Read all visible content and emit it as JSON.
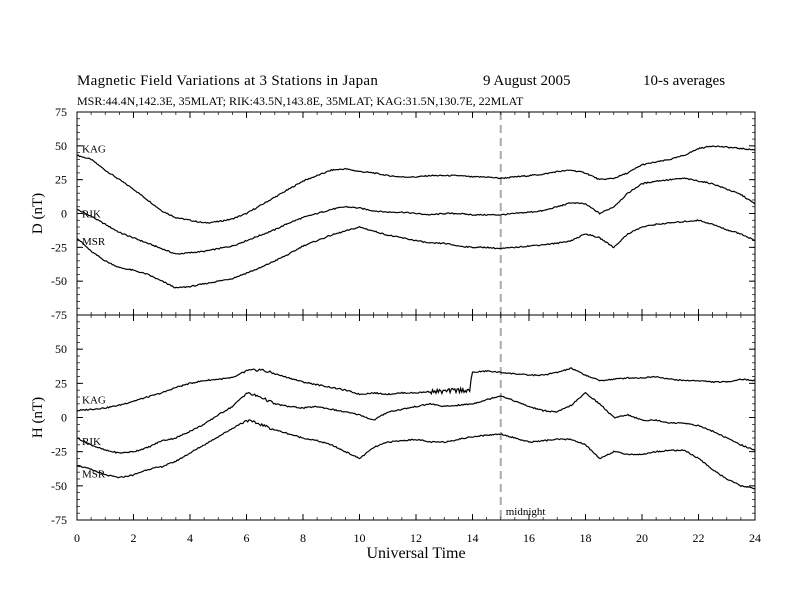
{
  "header": {
    "title": "Magnetic Field Variations at 3 Stations in Japan",
    "date": "9   August  2005",
    "averaging": "10-s averages",
    "stations": "MSR:44.4N,142.3E, 35MLAT;  RIK:43.5N,143.8E, 35MLAT;  KAG:31.5N,130.7E, 22MLAT"
  },
  "chart_data": [
    {
      "type": "line",
      "panel": "D",
      "ylabel": "D (nT)",
      "xlabel": "",
      "xlim": [
        0,
        24
      ],
      "ylim": [
        -75,
        75
      ],
      "yticks": [
        -75,
        -50,
        -25,
        0,
        25,
        50,
        75
      ],
      "xticks": [
        0,
        2,
        4,
        6,
        8,
        10,
        12,
        14,
        16,
        18,
        20,
        22,
        24
      ],
      "marker_line": {
        "x": 15,
        "style": "dashed",
        "color": "#aaaaaa"
      },
      "series": [
        {
          "name": "KAG",
          "x": [
            0,
            0.5,
            1,
            1.5,
            2,
            2.5,
            3,
            3.5,
            4,
            4.5,
            5,
            5.5,
            6,
            6.5,
            7,
            7.5,
            8,
            8.5,
            9,
            9.5,
            10,
            10.5,
            11,
            11.5,
            12,
            12.5,
            13,
            13.5,
            14,
            14.5,
            15,
            15.5,
            16,
            16.5,
            17,
            17.5,
            18,
            18.5,
            19,
            19.5,
            20,
            20.5,
            21,
            21.5,
            22,
            22.5,
            23,
            23.5,
            24
          ],
          "y": [
            43,
            40,
            32,
            25,
            18,
            10,
            2,
            -3,
            -5,
            -7,
            -6,
            -4,
            0,
            6,
            12,
            18,
            24,
            28,
            32,
            33,
            31,
            30,
            28,
            27,
            27,
            28,
            28,
            28,
            27,
            27,
            26,
            27,
            28,
            29,
            31,
            32,
            30,
            25,
            26,
            30,
            36,
            38,
            40,
            43,
            48,
            50,
            49,
            48,
            47
          ]
        },
        {
          "name": "RIK",
          "x": [
            0,
            0.5,
            1,
            1.5,
            2,
            2.5,
            3,
            3.5,
            4,
            4.5,
            5,
            5.5,
            6,
            6.5,
            7,
            7.5,
            8,
            8.5,
            9,
            9.5,
            10,
            10.5,
            11,
            11.5,
            12,
            12.5,
            13,
            13.5,
            14,
            14.5,
            15,
            15.5,
            16,
            16.5,
            17,
            17.5,
            18,
            18.5,
            19,
            19.5,
            20,
            20.5,
            21,
            21.5,
            22,
            22.5,
            23,
            23.5,
            24
          ],
          "y": [
            3,
            -2,
            -8,
            -14,
            -18,
            -22,
            -26,
            -30,
            -29,
            -28,
            -26,
            -24,
            -20,
            -16,
            -12,
            -7,
            -3,
            0,
            3,
            5,
            4,
            2,
            1,
            1,
            0,
            -1,
            0,
            0,
            -1,
            -1,
            -1,
            0,
            1,
            2,
            5,
            8,
            7,
            0,
            5,
            15,
            22,
            24,
            25,
            26,
            24,
            22,
            18,
            14,
            7
          ]
        },
        {
          "name": "MSR",
          "x": [
            0,
            0.5,
            1,
            1.5,
            2,
            2.5,
            3,
            3.5,
            4,
            4.5,
            5,
            5.5,
            6,
            6.5,
            7,
            7.5,
            8,
            8.5,
            9,
            9.5,
            10,
            10.5,
            11,
            11.5,
            12,
            12.5,
            13,
            13.5,
            14,
            14.5,
            15,
            15.5,
            16,
            16.5,
            17,
            17.5,
            18,
            18.5,
            19,
            19.5,
            20,
            20.5,
            21,
            21.5,
            22,
            22.5,
            23,
            23.5,
            24
          ],
          "y": [
            -18,
            -28,
            -35,
            -40,
            -42,
            -45,
            -50,
            -55,
            -54,
            -52,
            -50,
            -48,
            -44,
            -40,
            -35,
            -30,
            -24,
            -20,
            -16,
            -13,
            -10,
            -13,
            -16,
            -18,
            -20,
            -22,
            -22,
            -24,
            -25,
            -25,
            -26,
            -25,
            -24,
            -23,
            -22,
            -20,
            -15,
            -18,
            -25,
            -15,
            -10,
            -8,
            -7,
            -6,
            -5,
            -8,
            -12,
            -15,
            -20
          ]
        }
      ]
    },
    {
      "type": "line",
      "panel": "H",
      "ylabel": "H (nT)",
      "xlabel": "Universal Time",
      "xlim": [
        0,
        24
      ],
      "ylim": [
        -75,
        75
      ],
      "yticks": [
        -75,
        -50,
        -25,
        0,
        25,
        50,
        75
      ],
      "xticks": [
        0,
        2,
        4,
        6,
        8,
        10,
        12,
        14,
        16,
        18,
        20,
        22,
        24
      ],
      "marker_line": {
        "x": 15,
        "style": "dashed",
        "color": "#aaaaaa",
        "label": "midnight"
      },
      "series": [
        {
          "name": "KAG",
          "x": [
            0,
            0.5,
            1,
            1.5,
            2,
            2.5,
            3,
            3.5,
            4,
            4.5,
            5,
            5.5,
            6,
            6.5,
            7,
            7.5,
            8,
            8.5,
            9,
            9.5,
            10,
            10.5,
            11,
            11.5,
            12,
            12.5,
            13,
            13.5,
            13.9,
            14,
            14.5,
            15,
            15.5,
            16,
            16.5,
            17,
            17.5,
            18,
            18.5,
            19,
            19.5,
            20,
            20.5,
            21,
            21.5,
            22,
            22.5,
            23,
            23.5,
            24
          ],
          "y": [
            5,
            6,
            7,
            9,
            12,
            15,
            18,
            22,
            25,
            27,
            28,
            29,
            34,
            35,
            32,
            29,
            26,
            24,
            22,
            20,
            17,
            18,
            17,
            18,
            18,
            19,
            19,
            20,
            20,
            33,
            34,
            33,
            32,
            31,
            31,
            33,
            36,
            31,
            27,
            28,
            29,
            29,
            30,
            28,
            27,
            27,
            26,
            26,
            28,
            27
          ]
        },
        {
          "name": "RIK",
          "x": [
            0,
            0.5,
            1,
            1.5,
            2,
            2.5,
            3,
            3.5,
            4,
            4.5,
            5,
            5.5,
            6,
            6.5,
            7,
            7.5,
            8,
            8.5,
            9,
            9.5,
            10,
            10.5,
            11,
            11.5,
            12,
            12.5,
            13,
            13.5,
            14,
            14.5,
            15,
            15.5,
            16,
            16.5,
            17,
            17.5,
            18,
            18.5,
            19,
            19.5,
            20,
            20.5,
            21,
            21.5,
            22,
            22.5,
            23,
            23.5,
            24
          ],
          "y": [
            -15,
            -20,
            -24,
            -26,
            -25,
            -22,
            -17,
            -15,
            -10,
            -5,
            2,
            8,
            18,
            15,
            10,
            8,
            7,
            8,
            6,
            4,
            2,
            -2,
            4,
            6,
            8,
            10,
            8,
            9,
            10,
            13,
            16,
            12,
            8,
            5,
            4,
            9,
            18,
            10,
            0,
            2,
            -2,
            -2,
            -4,
            -4,
            -6,
            -10,
            -15,
            -20,
            -24
          ]
        },
        {
          "name": "MSR",
          "x": [
            0,
            0.5,
            1,
            1.5,
            2,
            2.5,
            3,
            3.5,
            4,
            4.5,
            5,
            5.5,
            6,
            6.5,
            7,
            7.5,
            8,
            8.5,
            9,
            9.5,
            10,
            10.5,
            11,
            11.5,
            12,
            12.5,
            13,
            13.5,
            14,
            14.5,
            15,
            15.5,
            16,
            16.5,
            17,
            17.5,
            18,
            18.5,
            19,
            19.5,
            20,
            20.5,
            21,
            21.5,
            22,
            22.5,
            23,
            23.5,
            24
          ],
          "y": [
            -35,
            -38,
            -42,
            -44,
            -42,
            -38,
            -36,
            -32,
            -26,
            -20,
            -14,
            -8,
            -2,
            -5,
            -9,
            -12,
            -15,
            -17,
            -20,
            -25,
            -30,
            -22,
            -18,
            -17,
            -16,
            -18,
            -18,
            -16,
            -14,
            -13,
            -12,
            -15,
            -18,
            -17,
            -16,
            -16,
            -20,
            -30,
            -25,
            -27,
            -27,
            -25,
            -24,
            -24,
            -30,
            -38,
            -45,
            -50,
            -52
          ]
        }
      ]
    }
  ]
}
